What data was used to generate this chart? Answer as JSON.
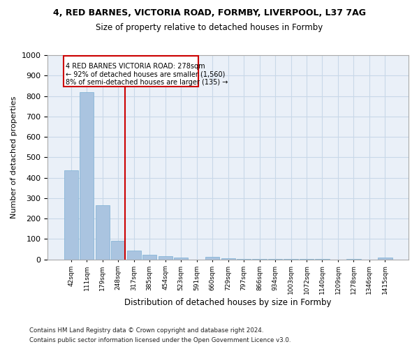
{
  "title": "4, RED BARNES, VICTORIA ROAD, FORMBY, LIVERPOOL, L37 7AG",
  "subtitle": "Size of property relative to detached houses in Formby",
  "xlabel": "Distribution of detached houses by size in Formby",
  "ylabel": "Number of detached properties",
  "categories": [
    "42sqm",
    "111sqm",
    "179sqm",
    "248sqm",
    "317sqm",
    "385sqm",
    "454sqm",
    "523sqm",
    "591sqm",
    "660sqm",
    "729sqm",
    "797sqm",
    "866sqm",
    "934sqm",
    "1003sqm",
    "1072sqm",
    "1140sqm",
    "1209sqm",
    "1278sqm",
    "1346sqm",
    "1415sqm"
  ],
  "values": [
    435,
    820,
    265,
    92,
    45,
    22,
    15,
    8,
    0,
    12,
    5,
    2,
    1,
    1,
    1,
    1,
    1,
    0,
    1,
    0,
    8
  ],
  "bar_color": "#aac4e0",
  "bar_edge_color": "#7aafd4",
  "annotation_text_line1": "4 RED BARNES VICTORIA ROAD: 278sqm",
  "annotation_text_line2": "← 92% of detached houses are smaller (1,560)",
  "annotation_text_line3": "8% of semi-detached houses are larger (135) →",
  "annotation_box_color": "#cc0000",
  "ylim": [
    0,
    1000
  ],
  "yticks": [
    0,
    100,
    200,
    300,
    400,
    500,
    600,
    700,
    800,
    900,
    1000
  ],
  "grid_color": "#c8d8e8",
  "background_color": "#eaf0f8",
  "footer_line1": "Contains HM Land Registry data © Crown copyright and database right 2024.",
  "footer_line2": "Contains public sector information licensed under the Open Government Licence v3.0."
}
